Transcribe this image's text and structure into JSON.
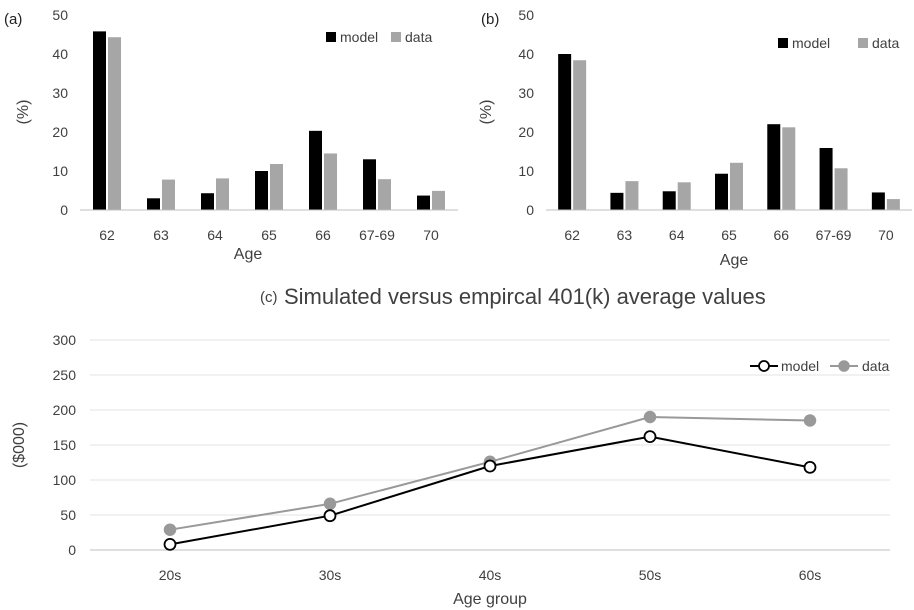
{
  "chart_data": [
    {
      "type": "bar",
      "panel_label": "(a)",
      "title": "",
      "xlabel": "Age",
      "ylabel": "(%)",
      "ylim": [
        0,
        50
      ],
      "yticks": [
        0,
        10,
        20,
        30,
        40,
        50
      ],
      "grid": false,
      "legend": "top-right",
      "categories": [
        "62",
        "63",
        "64",
        "65",
        "66",
        "67-69",
        "70"
      ],
      "series": [
        {
          "name": "model",
          "color": "#000000",
          "values": [
            45.8,
            3.0,
            4.3,
            10.0,
            20.3,
            13.0,
            3.7
          ]
        },
        {
          "name": "data",
          "color": "#a6a6a6",
          "values": [
            44.3,
            7.8,
            8.1,
            11.8,
            14.5,
            7.9,
            4.9
          ]
        }
      ]
    },
    {
      "type": "bar",
      "panel_label": "(b)",
      "title": "",
      "xlabel": "Age",
      "ylabel": "(%)",
      "ylim": [
        0,
        50
      ],
      "yticks": [
        0,
        10,
        20,
        30,
        40,
        50
      ],
      "grid": false,
      "legend": "top-right",
      "categories": [
        "62",
        "63",
        "64",
        "65",
        "66",
        "67-69",
        "70"
      ],
      "series": [
        {
          "name": "model",
          "color": "#000000",
          "values": [
            40.0,
            4.4,
            4.8,
            9.3,
            22.0,
            15.9,
            4.5
          ]
        },
        {
          "name": "data",
          "color": "#a6a6a6",
          "values": [
            38.4,
            7.4,
            7.1,
            12.1,
            21.2,
            10.7,
            2.8
          ]
        }
      ]
    },
    {
      "type": "line",
      "panel_label": "(c)",
      "title": "Simulated versus empircal 401(k) average values",
      "xlabel": "Age group",
      "ylabel": "($000)",
      "ylim": [
        0,
        300
      ],
      "yticks": [
        0,
        50,
        100,
        150,
        200,
        250,
        300
      ],
      "grid": true,
      "legend": "top-right",
      "categories": [
        "20s",
        "30s",
        "40s",
        "50s",
        "60s"
      ],
      "series": [
        {
          "name": "model",
          "color": "#000000",
          "marker": "open-circle",
          "values": [
            8,
            49,
            120,
            162,
            118
          ]
        },
        {
          "name": "data",
          "color": "#999999",
          "marker": "filled-circle",
          "values": [
            29,
            66,
            126,
            190,
            185
          ]
        }
      ]
    }
  ]
}
